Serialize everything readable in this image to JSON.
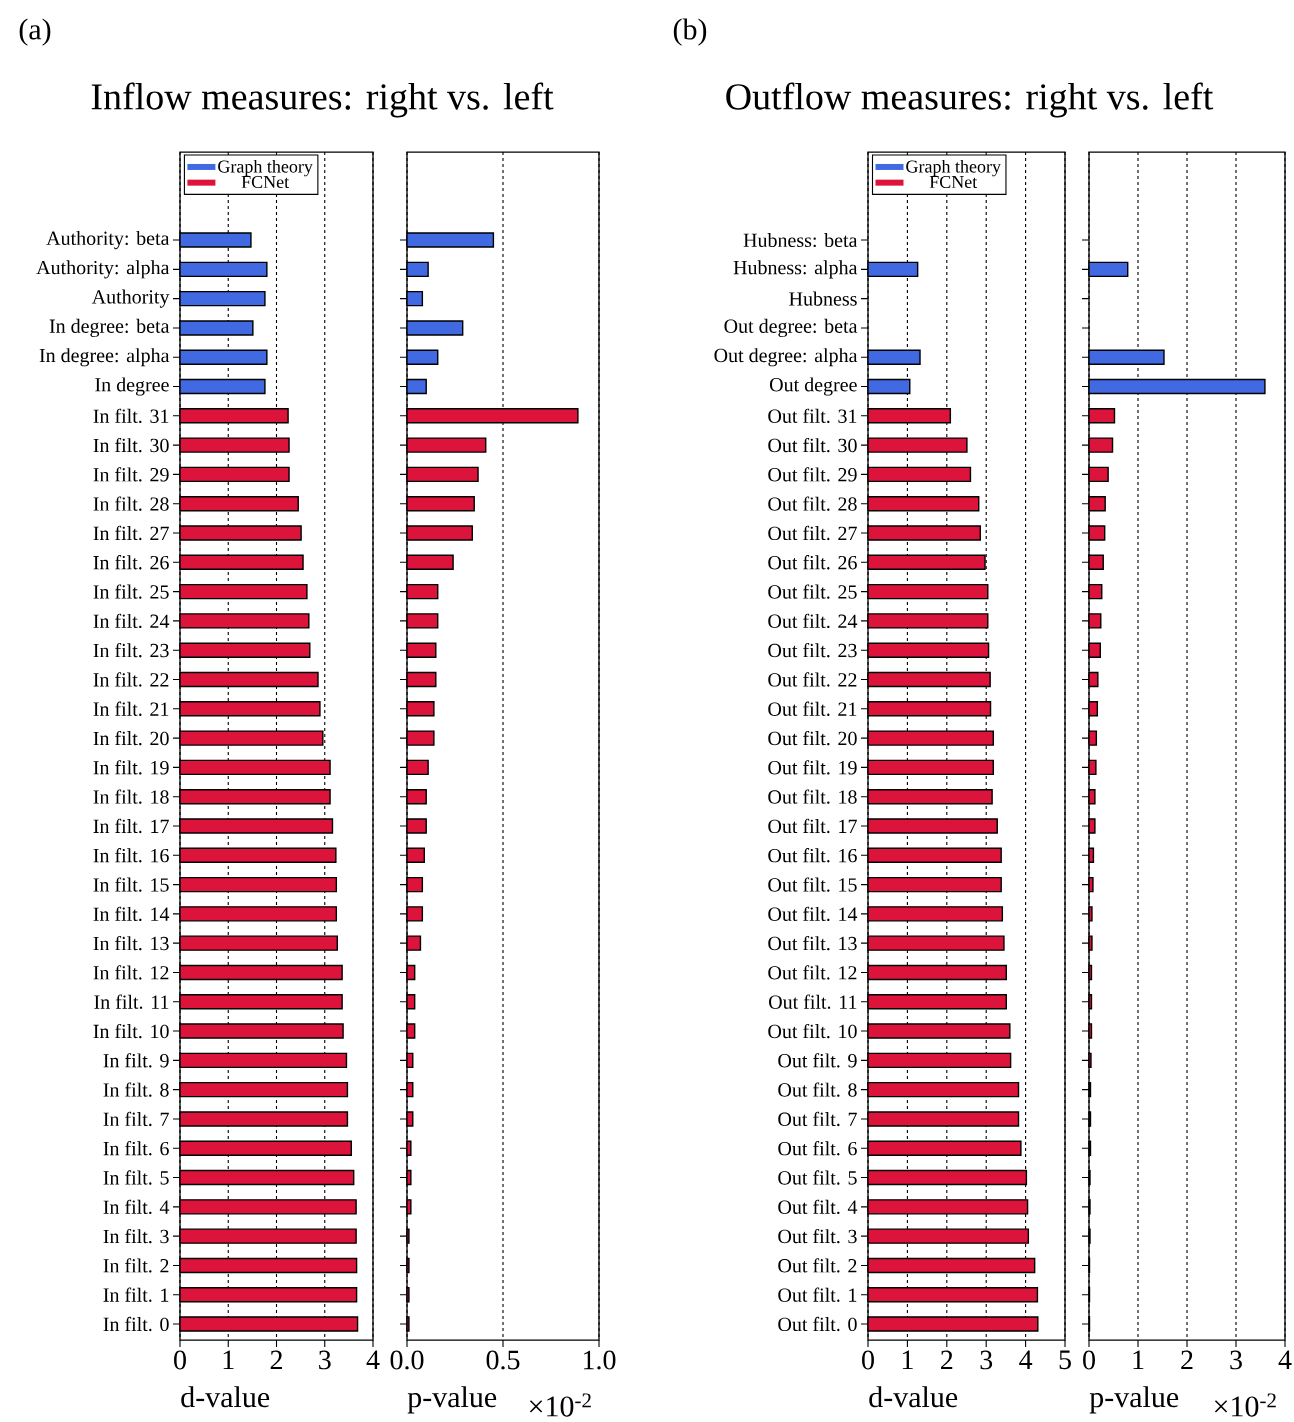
{
  "chart_data": [
    {
      "type": "bar",
      "orientation": "horizontal",
      "title": "Inflow measures: right vs. left",
      "xlabel": "d-value",
      "annotations": [
        "(a)"
      ],
      "categories": [
        "Authority: beta",
        "Authority: alpha",
        "Authority",
        "In degree: beta",
        "In degree: alpha",
        "In degree",
        "In filt. 31",
        "In filt. 30",
        "In filt. 29",
        "In filt. 28",
        "In filt. 27",
        "In filt. 26",
        "In filt. 25",
        "In filt. 24",
        "In filt. 23",
        "In filt. 22",
        "In filt. 21",
        "In filt. 20",
        "In filt. 19",
        "In filt. 18",
        "In filt. 17",
        "In filt. 16",
        "In filt. 15",
        "In filt. 14",
        "In filt. 13",
        "In filt. 12",
        "In filt. 11",
        "In filt. 10",
        "In filt. 9",
        "In filt. 8",
        "In filt. 7",
        "In filt. 6",
        "In filt. 5",
        "In filt. 4",
        "In filt. 3",
        "In filt. 2",
        "In filt. 1",
        "In filt. 0"
      ],
      "series": [
        {
          "name": "Graph theory",
          "color": "#4169e1",
          "values": [
            1.47,
            1.8,
            1.76,
            1.51,
            1.8,
            1.76,
            null,
            null,
            null,
            null,
            null,
            null,
            null,
            null,
            null,
            null,
            null,
            null,
            null,
            null,
            null,
            null,
            null,
            null,
            null,
            null,
            null,
            null,
            null,
            null,
            null,
            null,
            null,
            null,
            null,
            null,
            null,
            null
          ]
        },
        {
          "name": "FCNet",
          "color": "#dc143c",
          "values": [
            null,
            null,
            null,
            null,
            null,
            null,
            2.24,
            2.26,
            2.26,
            2.45,
            2.51,
            2.55,
            2.63,
            2.67,
            2.69,
            2.86,
            2.9,
            2.96,
            3.11,
            3.11,
            3.16,
            3.23,
            3.24,
            3.24,
            3.26,
            3.36,
            3.36,
            3.38,
            3.45,
            3.47,
            3.47,
            3.55,
            3.6,
            3.65,
            3.65,
            3.66,
            3.66,
            3.68
          ]
        }
      ],
      "xlim": [
        0,
        4
      ],
      "xticks": [
        0,
        1,
        2,
        3,
        4
      ],
      "grid": "x",
      "legend": "top left"
    },
    {
      "type": "bar",
      "orientation": "horizontal",
      "xlabel": "p-value",
      "annotations": [
        "×10$^{-2}$"
      ],
      "tick_labels": "x",
      "series": [
        {
          "color": "#4169e1",
          "values": [
            0.45,
            0.11,
            0.08,
            0.29,
            0.16,
            0.1,
            null,
            null,
            null,
            null,
            null,
            null,
            null,
            null,
            null,
            null,
            null,
            null,
            null,
            null,
            null,
            null,
            null,
            null,
            null,
            null,
            null,
            null,
            null,
            null,
            null,
            null,
            null,
            null,
            null,
            null,
            null,
            null
          ]
        },
        {
          "color": "#dc143c",
          "values": [
            null,
            null,
            null,
            null,
            null,
            null,
            0.89,
            0.41,
            0.37,
            0.35,
            0.34,
            0.24,
            0.16,
            0.16,
            0.15,
            0.15,
            0.14,
            0.14,
            0.11,
            0.1,
            0.1,
            0.09,
            0.08,
            0.08,
            0.07,
            0.04,
            0.04,
            0.04,
            0.03,
            0.03,
            0.03,
            0.02,
            0.02,
            0.02,
            0.01,
            0.01,
            0.01,
            0.01
          ]
        }
      ],
      "xlim": [
        0,
        1
      ],
      "xticks": [
        {
          "value": 0,
          "label": "0.0"
        },
        {
          "value": 0.5,
          "label": "0.5"
        },
        {
          "value": 1,
          "label": "1.0"
        }
      ],
      "grid": "x"
    },
    {
      "type": "bar",
      "orientation": "horizontal",
      "title": "Outflow measures: right vs. left",
      "xlabel": "d-value",
      "annotations": [
        "(b)"
      ],
      "categories": [
        "Hubness: beta",
        "Hubness: alpha",
        "Hubness",
        "Out degree: beta",
        "Out degree: alpha",
        "Out degree",
        "Out filt. 31",
        "Out filt. 30",
        "Out filt. 29",
        "Out filt. 28",
        "Out filt. 27",
        "Out filt. 26",
        "Out filt. 25",
        "Out filt. 24",
        "Out filt. 23",
        "Out filt. 22",
        "Out filt. 21",
        "Out filt. 20",
        "Out filt. 19",
        "Out filt. 18",
        "Out filt. 17",
        "Out filt. 16",
        "Out filt. 15",
        "Out filt. 14",
        "Out filt. 13",
        "Out filt. 12",
        "Out filt. 11",
        "Out filt. 10",
        "Out filt. 9",
        "Out filt. 8",
        "Out filt. 7",
        "Out filt. 6",
        "Out filt. 5",
        "Out filt. 4",
        "Out filt. 3",
        "Out filt. 2",
        "Out filt. 1",
        "Out filt. 0"
      ],
      "series": [
        {
          "name": "Graph theory",
          "color": "#4169e1",
          "values": [
            null,
            1.26,
            null,
            null,
            1.32,
            1.06,
            null,
            null,
            null,
            null,
            null,
            null,
            null,
            null,
            null,
            null,
            null,
            null,
            null,
            null,
            null,
            null,
            null,
            null,
            null,
            null,
            null,
            null,
            null,
            null,
            null,
            null,
            null,
            null,
            null,
            null,
            null,
            null
          ]
        },
        {
          "name": "FCNet",
          "color": "#dc143c",
          "values": [
            null,
            null,
            null,
            null,
            null,
            null,
            2.09,
            2.51,
            2.6,
            2.81,
            2.85,
            2.97,
            3.04,
            3.04,
            3.06,
            3.1,
            3.11,
            3.18,
            3.18,
            3.15,
            3.28,
            3.38,
            3.38,
            3.41,
            3.45,
            3.51,
            3.51,
            3.6,
            3.62,
            3.82,
            3.82,
            3.88,
            4.02,
            4.05,
            4.07,
            4.23,
            4.3,
            4.31
          ]
        }
      ],
      "xlim": [
        0,
        5
      ],
      "xticks": [
        0,
        1,
        2,
        3,
        4,
        5
      ],
      "grid": "x",
      "legend": "top left"
    },
    {
      "type": "bar",
      "orientation": "horizontal",
      "xlabel": "p-value",
      "annotations": [
        "×10$^{-2}$"
      ],
      "tick_labels": "x",
      "series": [
        {
          "color": "#4169e1",
          "values": [
            null,
            0.79,
            null,
            null,
            1.53,
            3.59,
            null,
            null,
            null,
            null,
            null,
            null,
            null,
            null,
            null,
            null,
            null,
            null,
            null,
            null,
            null,
            null,
            null,
            null,
            null,
            null,
            null,
            null,
            null,
            null,
            null,
            null,
            null,
            null,
            null,
            null,
            null,
            null
          ]
        },
        {
          "color": "#dc143c",
          "values": [
            null,
            null,
            null,
            null,
            null,
            null,
            0.52,
            0.48,
            0.39,
            0.33,
            0.32,
            0.29,
            0.26,
            0.24,
            0.23,
            0.18,
            0.17,
            0.15,
            0.14,
            0.12,
            0.12,
            0.09,
            0.08,
            0.06,
            0.06,
            0.05,
            0.05,
            0.05,
            0.04,
            0.03,
            0.03,
            0.03,
            0.02,
            0.02,
            0.02,
            0.01,
            0.01,
            0.01
          ]
        }
      ],
      "xlim": [
        0,
        4
      ],
      "xticks": [
        0,
        1,
        2,
        3,
        4
      ],
      "grid": "x"
    }
  ]
}
